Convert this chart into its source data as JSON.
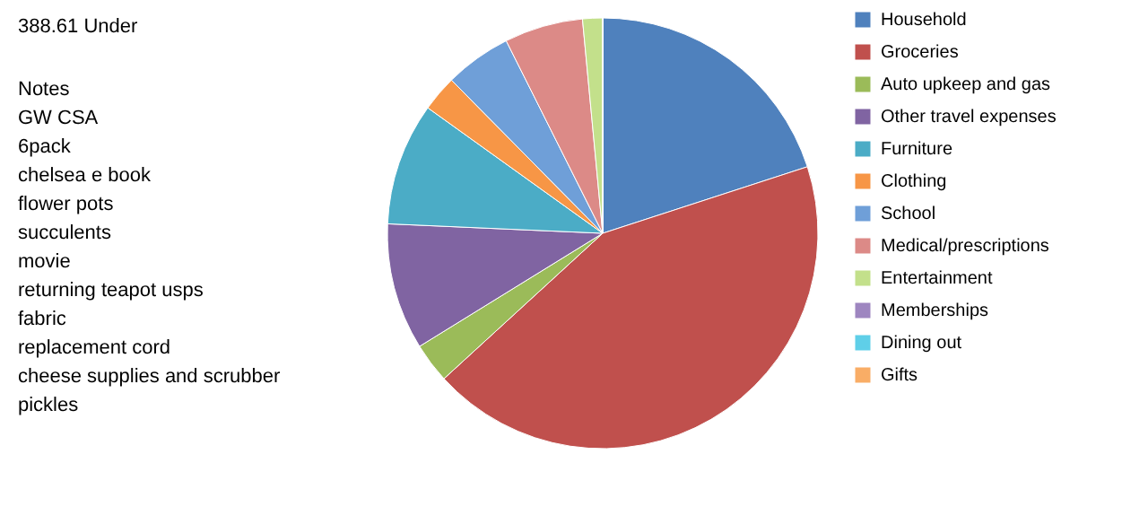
{
  "chart_data": {
    "type": "pie",
    "categories": [
      "Household",
      "Groceries",
      "Auto upkeep and gas",
      "Other travel expenses",
      "Furniture",
      "Clothing",
      "School",
      "Medical/prescriptions",
      "Entertainment",
      "Memberships",
      "Dining out",
      "Gifts"
    ],
    "values": [
      20,
      43.2,
      3,
      9.5,
      9.2,
      2.7,
      5,
      5.9,
      1.5,
      0,
      0,
      0
    ],
    "colors": [
      "#4f81bd",
      "#c0504d",
      "#9bbb59",
      "#8064a2",
      "#4bacc6",
      "#f79646",
      "#6f9fd8",
      "#dc8a87",
      "#c3e08b",
      "#9e86c0",
      "#5fcfe8",
      "#f9ad66"
    ],
    "legend": "right",
    "annotations": [
      "388.61 Under",
      "Notes",
      "GW CSA",
      "6pack",
      "chelsea e book",
      "flower pots",
      "succulents",
      "movie",
      "returning teapot usps",
      "fabric",
      "replacement cord",
      "cheese supplies and scrubber",
      "pickles"
    ]
  }
}
